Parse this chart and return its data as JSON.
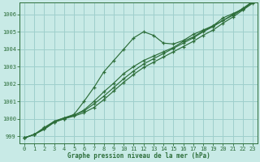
{
  "xlabel": "Graphe pression niveau de la mer (hPa)",
  "bg_color": "#c8eae6",
  "grid_color": "#9ecfcc",
  "line_color": "#2d6e3a",
  "hours": [
    0,
    1,
    2,
    3,
    4,
    5,
    6,
    7,
    8,
    9,
    10,
    11,
    12,
    13,
    14,
    15,
    16,
    17,
    18,
    19,
    20,
    21,
    22,
    23
  ],
  "line1": [
    998.9,
    999.1,
    999.4,
    999.8,
    1000.0,
    1000.15,
    1000.35,
    1000.65,
    1001.1,
    1001.6,
    1002.1,
    1002.55,
    1002.95,
    1003.25,
    1003.55,
    1003.85,
    1004.15,
    1004.45,
    1004.8,
    1005.1,
    1005.5,
    1005.85,
    1006.25,
    1006.65
  ],
  "line2": [
    998.9,
    999.1,
    999.4,
    999.8,
    1000.0,
    1000.2,
    1000.45,
    1000.85,
    1001.3,
    1001.8,
    1002.3,
    1002.75,
    1003.15,
    1003.45,
    1003.75,
    1004.05,
    1004.35,
    1004.65,
    1005.0,
    1005.3,
    1005.65,
    1005.95,
    1006.3,
    1006.7
  ],
  "line3": [
    998.9,
    999.1,
    999.5,
    999.85,
    1000.05,
    1000.2,
    1000.5,
    1001.0,
    1001.55,
    1002.05,
    1002.6,
    1003.0,
    1003.35,
    1003.6,
    1003.85,
    1004.1,
    1004.45,
    1004.7,
    1005.05,
    1005.35,
    1005.65,
    1006.0,
    1006.35,
    1006.75
  ],
  "line4": [
    998.9,
    999.1,
    999.45,
    999.85,
    1000.05,
    1000.25,
    1001.0,
    1001.8,
    1002.7,
    1003.35,
    1004.0,
    1004.65,
    1005.0,
    1004.8,
    1004.35,
    1004.3,
    1004.5,
    1004.85,
    1005.1,
    1005.35,
    1005.8,
    1006.05,
    1006.3,
    1006.75
  ],
  "ylim_min": 998.6,
  "ylim_max": 1006.7,
  "yticks": [
    999,
    1000,
    1001,
    1002,
    1003,
    1004,
    1005,
    1006
  ],
  "xticks": [
    0,
    1,
    2,
    3,
    4,
    5,
    6,
    7,
    8,
    9,
    10,
    11,
    12,
    13,
    14,
    15,
    16,
    17,
    18,
    19,
    20,
    21,
    22,
    23
  ]
}
